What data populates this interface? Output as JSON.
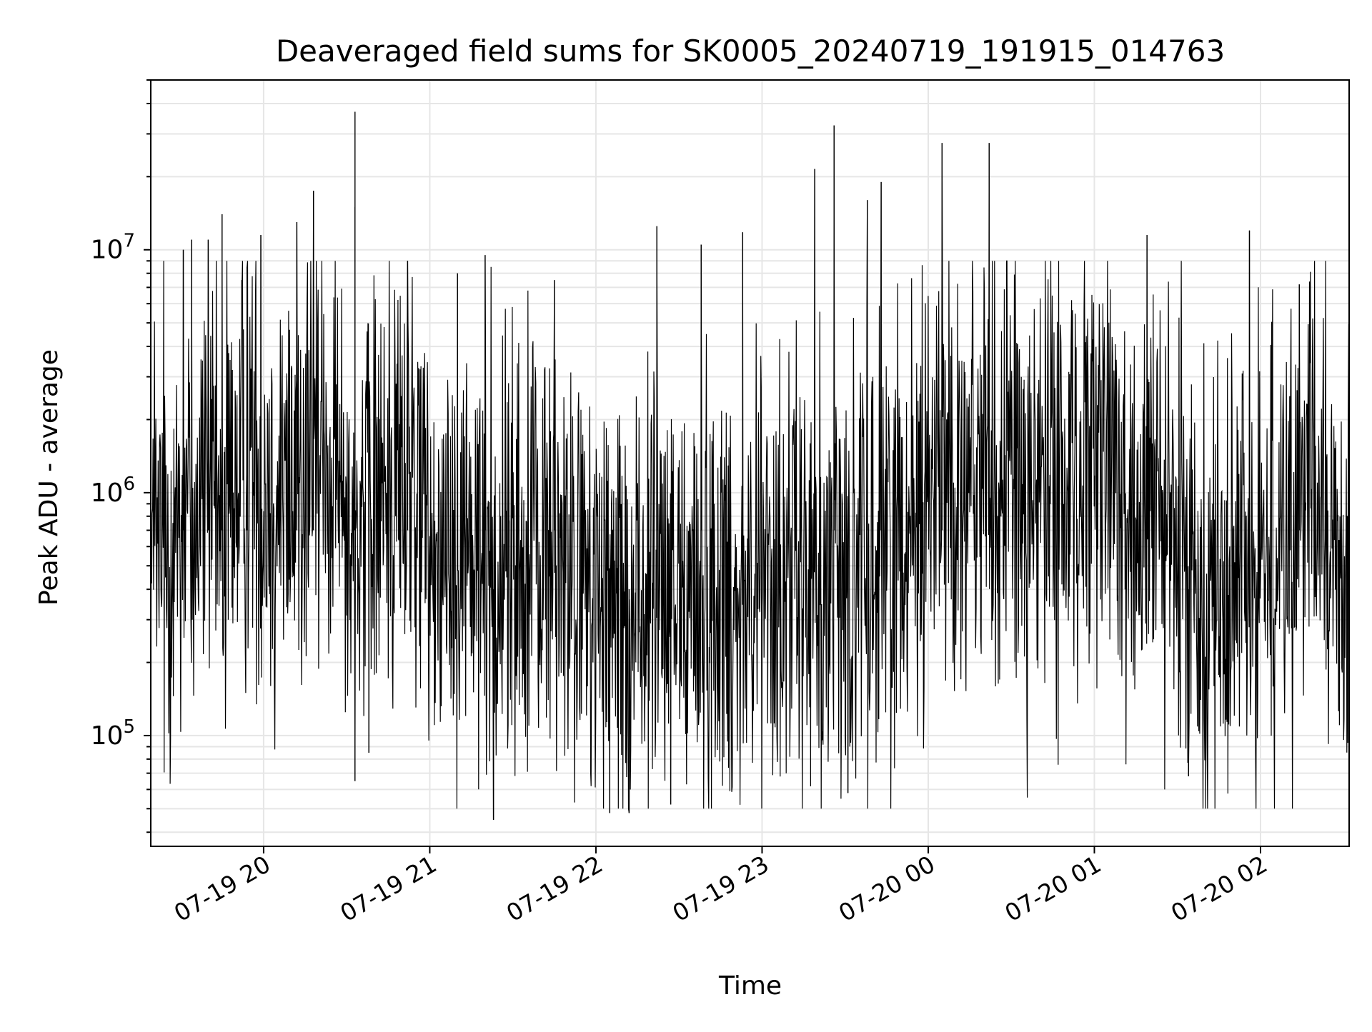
{
  "chart_data": {
    "type": "line",
    "title": "Deaveraged field sums for SK0005_20240719_191915_014763",
    "xlabel": "Time",
    "ylabel": "Peak ADU - average",
    "y_scale": "log",
    "ylim": [
      35000,
      50000000
    ],
    "xlim": [
      "2024-07-19 19:19:15",
      "2024-07-20 02:32:00"
    ],
    "grid": true,
    "line_color": "#000000",
    "x_ticks": [
      {
        "t": "2024-07-19 20:00",
        "label": "07-19 20"
      },
      {
        "t": "2024-07-19 21:00",
        "label": "07-19 21"
      },
      {
        "t": "2024-07-19 22:00",
        "label": "07-19 22"
      },
      {
        "t": "2024-07-19 23:00",
        "label": "07-19 23"
      },
      {
        "t": "2024-07-20 00:00",
        "label": "07-20 00"
      },
      {
        "t": "2024-07-20 01:00",
        "label": "07-20 01"
      },
      {
        "t": "2024-07-20 02:00",
        "label": "07-20 02"
      }
    ],
    "y_ticks": [
      {
        "value": 100000,
        "base": "10",
        "exp": "5"
      },
      {
        "value": 1000000,
        "base": "10",
        "exp": "6"
      },
      {
        "value": 10000000,
        "base": "10",
        "exp": "7"
      }
    ],
    "series": [
      {
        "x": [
          "2024-07-19 19:20",
          "2024-07-19 19:25",
          "2024-07-19 19:30",
          "2024-07-19 19:35",
          "2024-07-19 19:40",
          "2024-07-19 19:45",
          "2024-07-19 19:50",
          "2024-07-19 19:55",
          "2024-07-19 20:00",
          "2024-07-19 20:05",
          "2024-07-19 20:10",
          "2024-07-19 20:15",
          "2024-07-19 20:20",
          "2024-07-19 20:25",
          "2024-07-19 20:30",
          "2024-07-19 20:35",
          "2024-07-19 20:40",
          "2024-07-19 20:45",
          "2024-07-19 20:50",
          "2024-07-19 20:55",
          "2024-07-19 21:00",
          "2024-07-19 21:05",
          "2024-07-19 21:10",
          "2024-07-19 21:15",
          "2024-07-19 21:20",
          "2024-07-19 21:25",
          "2024-07-19 21:30",
          "2024-07-19 21:35",
          "2024-07-19 21:40",
          "2024-07-19 21:45",
          "2024-07-19 21:50",
          "2024-07-19 21:55",
          "2024-07-19 22:00",
          "2024-07-19 22:05",
          "2024-07-19 22:10",
          "2024-07-19 22:15",
          "2024-07-19 22:20",
          "2024-07-19 22:25",
          "2024-07-19 22:30",
          "2024-07-19 22:35",
          "2024-07-19 22:40",
          "2024-07-19 22:45",
          "2024-07-19 22:50",
          "2024-07-19 22:55",
          "2024-07-19 23:00",
          "2024-07-19 23:05",
          "2024-07-19 23:10",
          "2024-07-19 23:15",
          "2024-07-19 23:20",
          "2024-07-19 23:25",
          "2024-07-19 23:30",
          "2024-07-19 23:35",
          "2024-07-19 23:40",
          "2024-07-19 23:45",
          "2024-07-19 23:50",
          "2024-07-19 23:55",
          "2024-07-20 00:00",
          "2024-07-20 00:05",
          "2024-07-20 00:10",
          "2024-07-20 00:15",
          "2024-07-20 00:20",
          "2024-07-20 00:25",
          "2024-07-20 00:30",
          "2024-07-20 00:35",
          "2024-07-20 00:40",
          "2024-07-20 00:45",
          "2024-07-20 00:50",
          "2024-07-20 00:55",
          "2024-07-20 01:00",
          "2024-07-20 01:05",
          "2024-07-20 01:10",
          "2024-07-20 01:15",
          "2024-07-20 01:20",
          "2024-07-20 01:25",
          "2024-07-20 01:30",
          "2024-07-20 01:35",
          "2024-07-20 01:40",
          "2024-07-20 01:45",
          "2024-07-20 01:50",
          "2024-07-20 01:55",
          "2024-07-20 02:00",
          "2024-07-20 02:05",
          "2024-07-20 02:10",
          "2024-07-20 02:15",
          "2024-07-20 02:20",
          "2024-07-20 02:25",
          "2024-07-20 02:30"
        ],
        "y": [
          500000,
          600000,
          900000,
          800000,
          1000000,
          700000,
          1200000,
          1500000,
          1000000,
          900000,
          1300000,
          1200000,
          1400000,
          1100000,
          900000,
          800000,
          1000000,
          1000000,
          1300000,
          900000,
          700000,
          600000,
          650000,
          600000,
          500000,
          500000,
          550000,
          450000,
          600000,
          500000,
          450000,
          400000,
          350000,
          300000,
          320000,
          300000,
          350000,
          380000,
          400000,
          350000,
          350000,
          380000,
          400000,
          420000,
          450000,
          450000,
          420000,
          400000,
          450000,
          400000,
          420000,
          500000,
          550000,
          600000,
          700000,
          800000,
          1000000,
          1100000,
          1300000,
          1200000,
          1100000,
          900000,
          1000000,
          1100000,
          1000000,
          900000,
          1000000,
          1100000,
          1200000,
          1100000,
          1000000,
          900000,
          800000,
          700000,
          500000,
          400000,
          450000,
          350000,
          400000,
          450000,
          500000,
          450000,
          600000,
          800000,
          1000000,
          600000,
          400000
        ],
        "spikes": [
          {
            "t": "2024-07-19 20:33",
            "value": 37000000
          },
          {
            "t": "2024-07-19 20:33",
            "value": 15000000
          },
          {
            "t": "2024-07-19 20:18",
            "value": 17500000
          },
          {
            "t": "2024-07-19 19:45",
            "value": 14000000
          },
          {
            "t": "2024-07-19 19:40",
            "value": 11000000
          },
          {
            "t": "2024-07-19 19:34",
            "value": 11000000
          },
          {
            "t": "2024-07-19 19:31",
            "value": 10000000
          },
          {
            "t": "2024-07-19 19:54",
            "value": 8500000
          },
          {
            "t": "2024-07-19 19:59",
            "value": 11500000
          },
          {
            "t": "2024-07-19 20:12",
            "value": 13000000
          },
          {
            "t": "2024-07-19 20:52",
            "value": 9000000
          },
          {
            "t": "2024-07-19 21:10",
            "value": 8000000
          },
          {
            "t": "2024-07-19 21:20",
            "value": 9500000
          },
          {
            "t": "2024-07-19 21:45",
            "value": 7500000
          },
          {
            "t": "2024-07-19 22:22",
            "value": 12500000
          },
          {
            "t": "2024-07-19 22:38",
            "value": 10500000
          },
          {
            "t": "2024-07-19 22:53",
            "value": 11800000
          },
          {
            "t": "2024-07-19 23:19",
            "value": 21500000
          },
          {
            "t": "2024-07-19 23:26",
            "value": 32500000
          },
          {
            "t": "2024-07-19 23:38",
            "value": 16000000
          },
          {
            "t": "2024-07-19 23:43",
            "value": 19000000
          },
          {
            "t": "2024-07-20 00:05",
            "value": 27500000
          },
          {
            "t": "2024-07-20 00:22",
            "value": 27500000
          },
          {
            "t": "2024-07-20 01:19",
            "value": 11500000
          },
          {
            "t": "2024-07-20 01:56",
            "value": 12000000
          },
          {
            "t": "2024-07-20 02:14",
            "value": 7200000
          }
        ],
        "dips": [
          {
            "t": "2024-07-19 20:33",
            "value": 65000
          },
          {
            "t": "2024-07-19 20:38",
            "value": 85000
          },
          {
            "t": "2024-07-19 21:23",
            "value": 45000
          },
          {
            "t": "2024-07-19 22:05",
            "value": 48000
          },
          {
            "t": "2024-07-19 22:12",
            "value": 48000
          },
          {
            "t": "2024-07-19 22:27",
            "value": 52000
          },
          {
            "t": "2024-07-19 23:31",
            "value": 58000
          },
          {
            "t": "2024-07-20 01:34",
            "value": 68000
          },
          {
            "t": "2024-07-20 02:32",
            "value": 110000
          }
        ]
      }
    ]
  }
}
